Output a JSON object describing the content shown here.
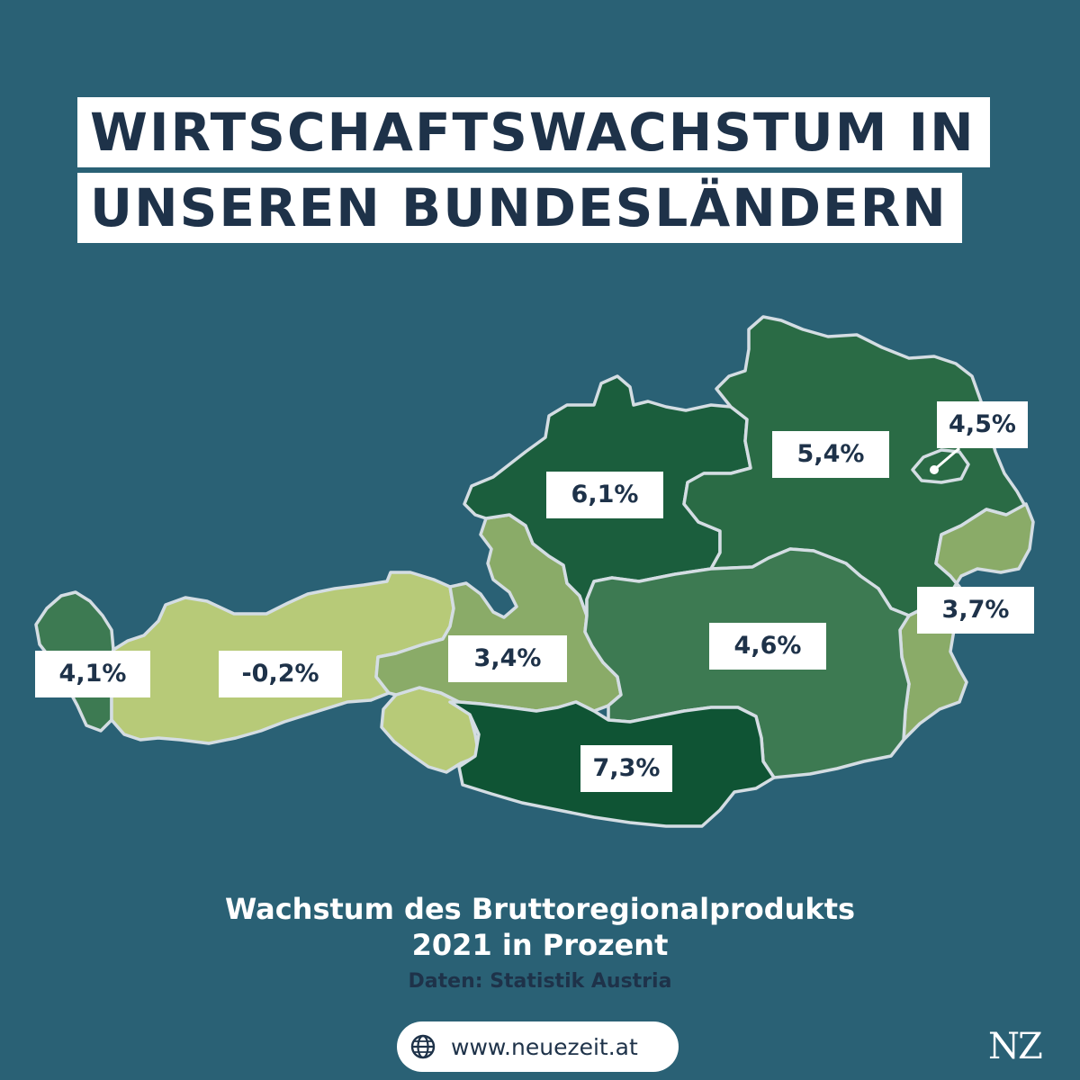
{
  "title": {
    "line1": "WIRTSCHAFTSWACHSTUM IN",
    "line2": "UNSEREN BUNDESLÄNDERN"
  },
  "map": {
    "regions": [
      {
        "id": "vorarlberg",
        "value": "4,1%",
        "color": "#3d7a52"
      },
      {
        "id": "tirol",
        "value": "-0,2%",
        "color": "#b7ca78"
      },
      {
        "id": "salzburg",
        "value": "3,4%",
        "color": "#8aab68"
      },
      {
        "id": "oberoesterreich",
        "value": "6,1%",
        "color": "#1b5e3d"
      },
      {
        "id": "niederoesterreich",
        "value": "5,4%",
        "color": "#2a6b45"
      },
      {
        "id": "wien",
        "value": "4,5%",
        "color": "#2a6b45"
      },
      {
        "id": "burgenland",
        "value": "3,7%",
        "color": "#8aab68"
      },
      {
        "id": "steiermark",
        "value": "4,6%",
        "color": "#3d7a52"
      },
      {
        "id": "kaernten",
        "value": "7,3%",
        "color": "#0f5434"
      },
      {
        "id": "osttirol",
        "value": "",
        "color": "#b7ca78"
      }
    ]
  },
  "caption": {
    "line1": "Wachstum des Bruttoregionalprodukts",
    "line2": "2021 in Prozent",
    "source": "Daten: Statistik Austria"
  },
  "footer": {
    "website": "www.neuezeit.at",
    "icon": "globe-icon",
    "logo": "NZ"
  }
}
